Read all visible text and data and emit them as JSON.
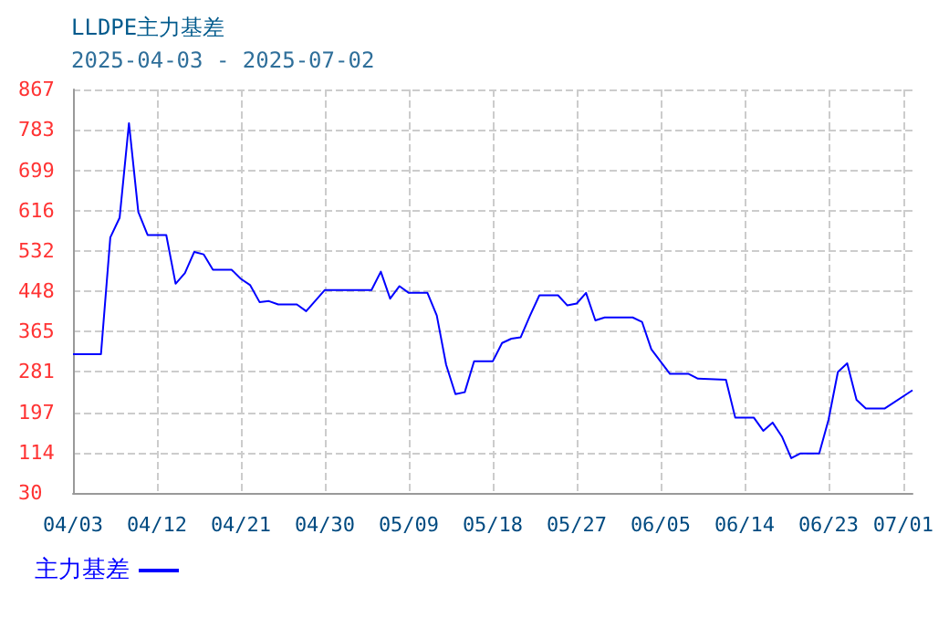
{
  "chart_data": {
    "type": "line",
    "title": "LLDPE主力基差",
    "subtitle": "2025-04-03 - 2025-07-02",
    "x": [
      "2025-04-03",
      "2025-04-06",
      "2025-04-07",
      "2025-04-08",
      "2025-04-09",
      "2025-04-10",
      "2025-04-11",
      "2025-04-13",
      "2025-04-14",
      "2025-04-15",
      "2025-04-16",
      "2025-04-17",
      "2025-04-18",
      "2025-04-20",
      "2025-04-21",
      "2025-04-22",
      "2025-04-23",
      "2025-04-24",
      "2025-04-25",
      "2025-04-27",
      "2025-04-28",
      "2025-04-30",
      "2025-05-05",
      "2025-05-06",
      "2025-05-07",
      "2025-05-08",
      "2025-05-09",
      "2025-05-11",
      "2025-05-12",
      "2025-05-13",
      "2025-05-14",
      "2025-05-15",
      "2025-05-16",
      "2025-05-18",
      "2025-05-19",
      "2025-05-20",
      "2025-05-21",
      "2025-05-22",
      "2025-05-23",
      "2025-05-25",
      "2025-05-26",
      "2025-05-27",
      "2025-05-28",
      "2025-05-29",
      "2025-05-30",
      "2025-06-02",
      "2025-06-03",
      "2025-06-04",
      "2025-06-06",
      "2025-06-08",
      "2025-06-09",
      "2025-06-12",
      "2025-06-13",
      "2025-06-15",
      "2025-06-16",
      "2025-06-17",
      "2025-06-18",
      "2025-06-19",
      "2025-06-20",
      "2025-06-22",
      "2025-06-23",
      "2025-06-24",
      "2025-06-25",
      "2025-06-26",
      "2025-06-27",
      "2025-06-29",
      "2025-07-02"
    ],
    "series": [
      {
        "name": "主力基差",
        "color": "#0000ff",
        "values": [
          318,
          318,
          560,
          601,
          797,
          613,
          565,
          565,
          464,
          486,
          530,
          525,
          493,
          493,
          474,
          461,
          426,
          428,
          421,
          421,
          407,
          451,
          451,
          489,
          433,
          459,
          445,
          445,
          398,
          296,
          235,
          239,
          303,
          303,
          341,
          350,
          353,
          398,
          440,
          440,
          419,
          423,
          445,
          388,
          394,
          394,
          385,
          328,
          277,
          277,
          267,
          265,
          186,
          186,
          159,
          176,
          147,
          102,
          112,
          112,
          182,
          281,
          299,
          223,
          205,
          205,
          243
        ]
      }
    ],
    "xlim": [
      "2025-04-03",
      "2025-07-02"
    ],
    "xticks": [
      {
        "value": "2025-04-03",
        "label": "04/03"
      },
      {
        "value": "2025-04-12",
        "label": "04/12"
      },
      {
        "value": "2025-04-21",
        "label": "04/21"
      },
      {
        "value": "2025-04-30",
        "label": "04/30"
      },
      {
        "value": "2025-05-09",
        "label": "05/09"
      },
      {
        "value": "2025-05-18",
        "label": "05/18"
      },
      {
        "value": "2025-05-27",
        "label": "05/27"
      },
      {
        "value": "2025-06-05",
        "label": "06/05"
      },
      {
        "value": "2025-06-14",
        "label": "06/14"
      },
      {
        "value": "2025-06-23",
        "label": "06/23"
      },
      {
        "value": "2025-07-01",
        "label": "07/01"
      }
    ],
    "ylim": [
      30,
      867
    ],
    "yticks": [
      30,
      114,
      197,
      281,
      365,
      448,
      532,
      616,
      699,
      783,
      867
    ],
    "grid": true,
    "legend": "bottom left",
    "marker": "none",
    "line_style": "solid"
  }
}
